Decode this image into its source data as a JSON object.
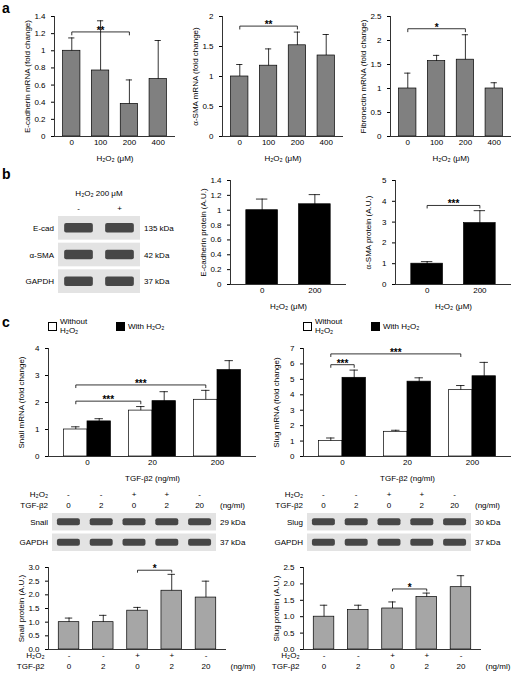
{
  "panel_labels": [
    "a",
    "b",
    "c"
  ],
  "chart_data": [
    {
      "type": "bar",
      "ylabel": "E-cadherin mRNA (fold change)",
      "xlabel": "H₂O₂ (μM)",
      "categories": [
        "0",
        "100",
        "200",
        "400"
      ],
      "values": [
        1.0,
        0.77,
        0.38,
        0.67
      ],
      "errors": [
        0.15,
        0.58,
        0.28,
        0.45
      ],
      "color": "#808080",
      "ylim": [
        0,
        1.4
      ],
      "yticks": [
        0,
        0.2,
        0.4,
        0.6,
        0.8,
        1,
        1.2,
        1.4
      ],
      "annotations": [
        {
          "from": "0",
          "to": "200",
          "text": "**"
        }
      ]
    },
    {
      "type": "bar",
      "ylabel": "α-SMA mRNA (fold change)",
      "xlabel": "H₂O₂ (μM)",
      "categories": [
        "0",
        "100",
        "200",
        "400"
      ],
      "values": [
        1.0,
        1.18,
        1.52,
        1.35
      ],
      "errors": [
        0.2,
        0.28,
        0.22,
        0.35
      ],
      "color": "#808080",
      "ylim": [
        0,
        2
      ],
      "yticks": [
        0,
        0.5,
        1,
        1.5,
        2
      ],
      "annotations": [
        {
          "from": "0",
          "to": "200",
          "text": "**"
        }
      ]
    },
    {
      "type": "bar",
      "ylabel": "Fibronectin mRNA (fold change)",
      "xlabel": "H₂O₂ (μM)",
      "categories": [
        "0",
        "100",
        "200",
        "400"
      ],
      "values": [
        1.0,
        1.57,
        1.6,
        1.0
      ],
      "errors": [
        0.32,
        0.12,
        0.52,
        0.12
      ],
      "color": "#808080",
      "ylim": [
        0,
        2.5
      ],
      "yticks": [
        0,
        0.5,
        1,
        1.5,
        2,
        2.5
      ],
      "annotations": [
        {
          "from": "0",
          "to": "200",
          "text": "*"
        }
      ]
    },
    {
      "type": "bar",
      "ylabel": "E-cadherin protein (A.U.)",
      "xlabel": "H₂O₂ (μM)",
      "categories": [
        "0",
        "200"
      ],
      "values": [
        1.0,
        1.08
      ],
      "errors": [
        0.15,
        0.13
      ],
      "color": "#000000",
      "ylim": [
        0,
        1.4
      ],
      "yticks": [
        0,
        0.2,
        0.4,
        0.6,
        0.8,
        1,
        1.2,
        1.4
      ]
    },
    {
      "type": "bar",
      "ylabel": "α-SMA protein (A.U.)",
      "xlabel": "H₂O₂ (μM)",
      "categories": [
        "0",
        "200"
      ],
      "values": [
        1.0,
        2.95
      ],
      "errors": [
        0.1,
        0.6
      ],
      "color": "#000000",
      "ylim": [
        0,
        5
      ],
      "yticks": [
        0,
        1,
        2,
        3,
        4,
        5
      ],
      "annotations": [
        {
          "from": "0",
          "to": "200",
          "text": "***"
        }
      ]
    },
    {
      "type": "bar",
      "ylabel": "Snail mRNA (fold change)",
      "xlabel": "TGF-β2 (ng/ml)",
      "categories": [
        "0",
        "20",
        "200"
      ],
      "legend": "top-left",
      "series": [
        {
          "name": "Without H₂O₂",
          "color": "#ffffff",
          "values": [
            1.0,
            1.7,
            2.1
          ],
          "errors": [
            0.1,
            0.15,
            0.35
          ]
        },
        {
          "name": "With H₂O₂",
          "color": "#000000",
          "values": [
            1.3,
            2.05,
            3.2
          ],
          "errors": [
            0.1,
            0.35,
            0.35
          ]
        }
      ],
      "ylim": [
        0,
        4
      ],
      "yticks": [
        0,
        1,
        2,
        3,
        4
      ],
      "annotations": [
        {
          "from": [
            "0",
            "Without H₂O₂"
          ],
          "to": [
            "20",
            "Without H₂O₂"
          ],
          "text": "***"
        },
        {
          "from": [
            "0",
            "Without H₂O₂"
          ],
          "to": [
            "200",
            "Without H₂O₂"
          ],
          "text": "***"
        }
      ]
    },
    {
      "type": "bar",
      "ylabel": "Slug mRNA (fold change)",
      "xlabel": "TGF-β2 (ng/ml)",
      "categories": [
        "0",
        "20",
        "200"
      ],
      "legend": "top-left",
      "series": [
        {
          "name": "Without H₂O₂",
          "color": "#ffffff",
          "values": [
            1.0,
            1.6,
            4.3
          ],
          "errors": [
            0.2,
            0.1,
            0.3
          ]
        },
        {
          "name": "With H₂O₂",
          "color": "#000000",
          "values": [
            5.1,
            4.85,
            5.2
          ],
          "errors": [
            0.5,
            0.25,
            0.9
          ]
        }
      ],
      "ylim": [
        0,
        7
      ],
      "yticks": [
        0,
        1,
        2,
        3,
        4,
        5,
        6,
        7
      ],
      "annotations": [
        {
          "from": [
            "0",
            "Without H₂O₂"
          ],
          "to": [
            "0",
            "With H₂O₂"
          ],
          "text": "***"
        },
        {
          "from": [
            "0",
            "Without H₂O₂"
          ],
          "to": [
            "200",
            "Without H₂O₂"
          ],
          "text": "***"
        }
      ]
    },
    {
      "type": "bar",
      "ylabel": "Snail protein (A.U.)",
      "x_table": {
        "rows": [
          {
            "label": "H₂O₂",
            "cells": [
              "-",
              "-",
              "+",
              "+",
              "-"
            ]
          },
          {
            "label": "TGF-β2",
            "cells": [
              "0",
              "2",
              "0",
              "2",
              "20"
            ],
            "note": "(ng/ml)"
          }
        ]
      },
      "values": [
        1.0,
        1.0,
        1.42,
        2.15,
        1.9
      ],
      "errors": [
        0.15,
        0.25,
        0.12,
        0.6,
        0.6
      ],
      "color": "#a6a6a6",
      "ylim": [
        0,
        3
      ],
      "yticks": [
        {
          "value": 0,
          "label": "0.0"
        },
        {
          "value": 0.5,
          "label": "0.5"
        },
        {
          "value": 1,
          "label": "1.0"
        },
        {
          "value": 1.5,
          "label": "1.5"
        },
        {
          "value": 2,
          "label": "2.0"
        },
        {
          "value": 2.5,
          "label": "2.5"
        },
        {
          "value": 3,
          "label": "3.0"
        }
      ],
      "annotations": [
        {
          "from": 2,
          "to": 3,
          "text": "*"
        }
      ]
    },
    {
      "type": "bar",
      "ylabel": "Slug protein (A.U.)",
      "x_table": {
        "rows": [
          {
            "label": "H₂O₂",
            "cells": [
              "-",
              "-",
              "+",
              "+",
              "-"
            ]
          },
          {
            "label": "TGF-β2",
            "cells": [
              "0",
              "2",
              "0",
              "2",
              "20"
            ],
            "note": "(ng/ml)"
          }
        ]
      },
      "values": [
        1.0,
        1.2,
        1.25,
        1.6,
        1.9
      ],
      "errors": [
        0.35,
        0.15,
        0.2,
        0.12,
        0.35
      ],
      "color": "#a6a6a6",
      "ylim": [
        0,
        2.5
      ],
      "yticks": [
        {
          "value": 0,
          "label": "0.0"
        },
        {
          "value": 0.5,
          "label": "0.5"
        },
        {
          "value": 1,
          "label": "1.0"
        },
        {
          "value": 1.5,
          "label": "1.5"
        },
        {
          "value": 2,
          "label": "2.0"
        },
        {
          "value": 2.5,
          "label": "2.5"
        }
      ],
      "annotations": [
        {
          "from": 2,
          "to": 3,
          "text": "*"
        }
      ]
    }
  ],
  "blots": [
    {
      "title": "H₂O₂ 200 μM",
      "header": [
        {
          "cells": [
            "-",
            "+"
          ]
        }
      ],
      "bands": [
        {
          "name": "E-cad",
          "size": "135 kDa"
        },
        {
          "name": "α-SMA",
          "size": "42 kDa"
        },
        {
          "name": "GAPDH",
          "size": "37 kDa"
        }
      ]
    },
    {
      "header": [
        {
          "label": "H₂O₂",
          "cells": [
            "-",
            "-",
            "+",
            "+",
            "-"
          ]
        },
        {
          "label": "TGF-β2",
          "cells": [
            "0",
            "2",
            "0",
            "2",
            "20"
          ],
          "note": "(ng/ml)"
        }
      ],
      "bands": [
        {
          "name": "Snail",
          "size": "29 kDa"
        },
        {
          "name": "GAPDH",
          "size": "37 kDa"
        }
      ]
    },
    {
      "header": [
        {
          "label": "H₂O₂",
          "cells": [
            "-",
            "-",
            "+",
            "+",
            "-"
          ]
        },
        {
          "label": "TGF-β2",
          "cells": [
            "0",
            "2",
            "0",
            "2",
            "20"
          ],
          "note": "(ng/ml)"
        }
      ],
      "bands": [
        {
          "name": "Slug",
          "size": "30 kDa"
        },
        {
          "name": "GAPDH",
          "size": "37 kDa"
        }
      ]
    }
  ]
}
